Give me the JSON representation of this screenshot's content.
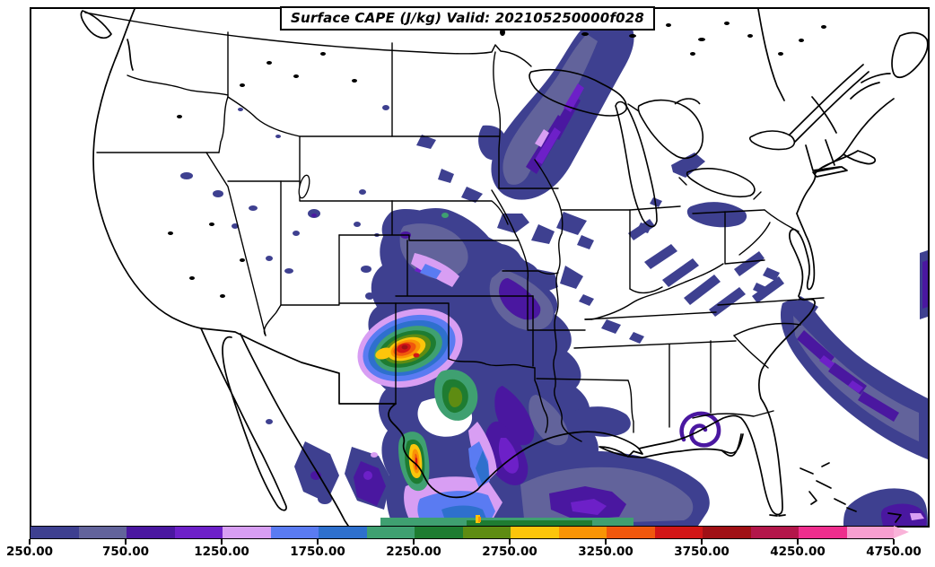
{
  "title": {
    "text": "Surface CAPE (J/kg) Valid: 202105250000f028"
  },
  "colorbar": {
    "tick_labels": [
      "250.00",
      "750.00",
      "1250.00",
      "1750.00",
      "2250.00",
      "2750.00",
      "3250.00",
      "3750.00",
      "4250.00",
      "4750.00"
    ],
    "tick_values": [
      250,
      750,
      1250,
      1750,
      2250,
      2750,
      3250,
      3750,
      4250,
      4750
    ],
    "arrow_color": "#f9b3d9"
  },
  "chart_data": {
    "type": "heatmap",
    "subtype": "filled_contour_weather_map",
    "title": "Surface CAPE (J/kg) Valid: 202105250000f028",
    "variable": "Surface CAPE",
    "units": "J/kg",
    "valid_label": "202105250000f028",
    "region": "Continental United States with northern Mexico, southern Canada, Gulf of Mexico and western Atlantic",
    "scale_min": 250,
    "scale_interval": 250,
    "scale_max": 4750,
    "extend": "max",
    "boundaries": [
      250,
      500,
      750,
      1000,
      1250,
      1500,
      1750,
      2000,
      2250,
      2500,
      2750,
      3000,
      3250,
      3500,
      3750,
      4000,
      4250,
      4500,
      4750
    ],
    "colors": [
      "#3e4090",
      "#62639b",
      "#4a17a0",
      "#6d20c8",
      "#d89ef3",
      "#5a7bf2",
      "#2e70cd",
      "#3fa071",
      "#1e7c31",
      "#5e8c12",
      "#fcc50b",
      "#f99405",
      "#f0570d",
      "#d21616",
      "#a01015",
      "#b3164a",
      "#ee2d8d",
      "#f79fd0"
    ],
    "over_color": "#f9b3d9",
    "features": [
      {
        "region": "West Texas / Texas Panhandle",
        "reading": "closed maximum with core above 3500 J/kg (red) ringed by orange, yellow, olive and green contours"
      },
      {
        "region": "Rio Grande / South Texas",
        "reading": "narrow north-south corridor exceeding 3500 J/kg"
      },
      {
        "region": "Central Plains (Nebraska/Kansas/Oklahoma)",
        "reading": "broken 250-1750 J/kg pockets with small 2000+ J/kg spots in central Kansas"
      },
      {
        "region": "Upper Midwest (Minnesota/Wisconsin/Lake Michigan)",
        "reading": "elongated 250-1250 J/kg band oriented southwest-northeast"
      },
      {
        "region": "East Texas, western Gulf of Mexico and Gulf coast",
        "reading": "broad 250-2250 J/kg area, values increasing toward the far southern edge"
      },
      {
        "region": "Ohio Valley / Appalachians",
        "reading": "scattered 250-1000 J/kg streaks"
      },
      {
        "region": "Southeast Atlantic offshore (Gulf Stream)",
        "reading": "250-1250 J/kg band from the Carolinas toward the southeast corner"
      },
      {
        "region": "Western United States",
        "reading": "isolated small 250-1000 J/kg specks over the Great Basin and Rockies"
      }
    ],
    "legend_position": "bottom horizontal colorbar with right-pointing overflow arrow",
    "grid": false
  },
  "icons": {
    "colorbar_arrow": "right-pointing triangle (values above 4750 J/kg)"
  }
}
